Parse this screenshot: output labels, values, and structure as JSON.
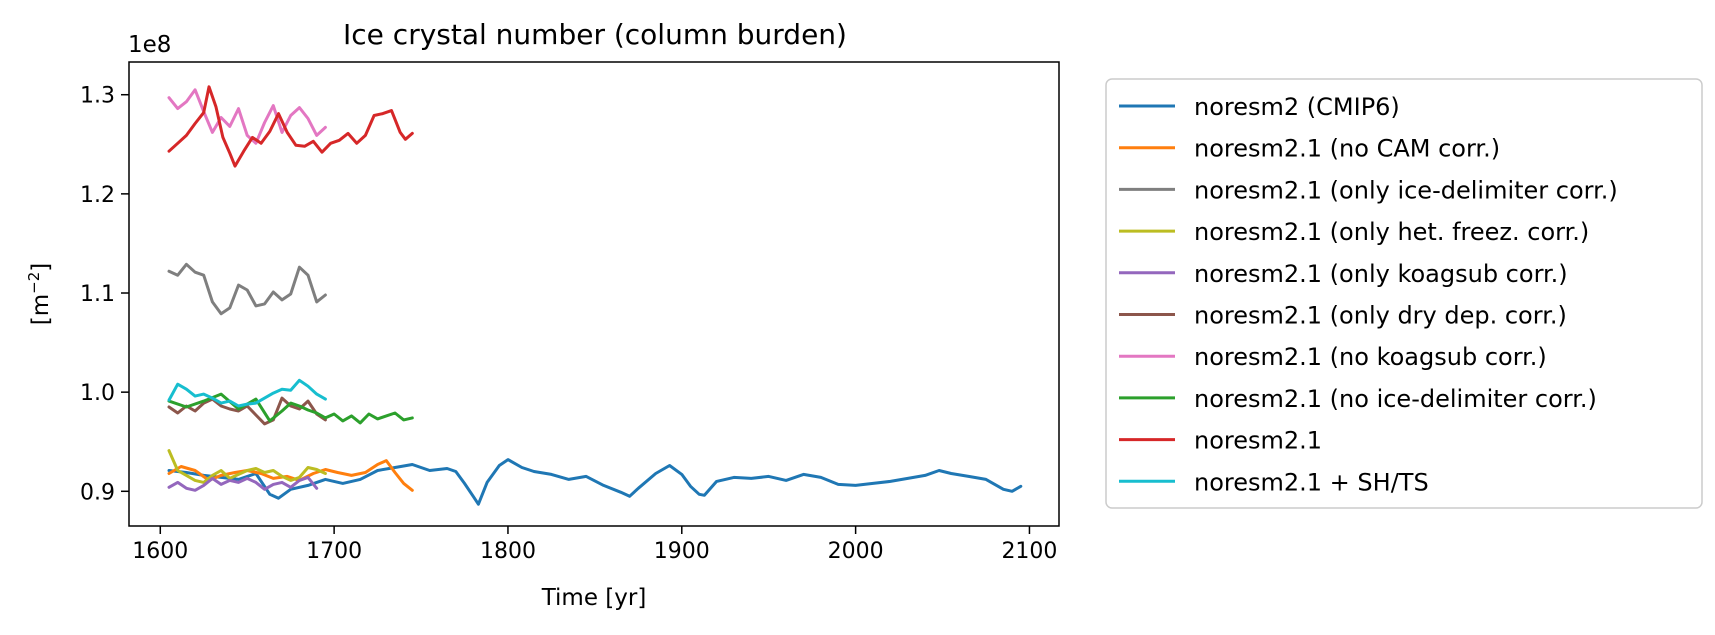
{
  "chart_data": {
    "type": "line",
    "title": "Ice crystal number (column burden)",
    "xlabel": "Time [yr]",
    "ylabel_prefix": "[m",
    "ylabel_exponent": "−2",
    "ylabel_suffix": "]",
    "y_offset_label": "1e8",
    "xlim": [
      1582,
      2117
    ],
    "ylim": [
      0.865,
      1.333
    ],
    "xticks": [
      1600,
      1700,
      1800,
      1900,
      2000,
      2100
    ],
    "yticks": [
      0.9,
      1.0,
      1.1,
      1.2,
      1.3
    ],
    "ytick_labels": [
      "0.9",
      "1.0",
      "1.1",
      "1.2",
      "1.3"
    ],
    "grid": false,
    "legend_position": "outside-right",
    "series": [
      {
        "name": "noresm2 (CMIP6)",
        "color": "#1f77b4",
        "x": [
          1605,
          1615,
          1625,
          1635,
          1645,
          1655,
          1663,
          1668,
          1675,
          1685,
          1695,
          1705,
          1715,
          1725,
          1735,
          1745,
          1755,
          1765,
          1770,
          1775,
          1780,
          1783,
          1788,
          1795,
          1800,
          1808,
          1815,
          1825,
          1835,
          1845,
          1855,
          1865,
          1870,
          1875,
          1885,
          1893,
          1900,
          1905,
          1910,
          1913,
          1920,
          1930,
          1940,
          1950,
          1960,
          1970,
          1980,
          1990,
          2000,
          2010,
          2020,
          2030,
          2040,
          2048,
          2055,
          2065,
          2075,
          2085,
          2090,
          2095
        ],
        "values": [
          0.921,
          0.919,
          0.916,
          0.914,
          0.912,
          0.918,
          0.897,
          0.893,
          0.902,
          0.906,
          0.912,
          0.908,
          0.912,
          0.921,
          0.924,
          0.927,
          0.921,
          0.923,
          0.92,
          0.908,
          0.895,
          0.887,
          0.909,
          0.926,
          0.932,
          0.924,
          0.92,
          0.917,
          0.912,
          0.915,
          0.906,
          0.899,
          0.895,
          0.903,
          0.918,
          0.926,
          0.917,
          0.905,
          0.897,
          0.896,
          0.91,
          0.914,
          0.913,
          0.915,
          0.911,
          0.917,
          0.914,
          0.907,
          0.906,
          0.908,
          0.91,
          0.913,
          0.916,
          0.921,
          0.918,
          0.915,
          0.912,
          0.902,
          0.9,
          0.905
        ]
      },
      {
        "name": "noresm2.1 (no CAM corr.)",
        "color": "#ff7f0e",
        "x": [
          1605,
          1612,
          1620,
          1628,
          1635,
          1643,
          1650,
          1658,
          1665,
          1673,
          1680,
          1688,
          1695,
          1702,
          1710,
          1718,
          1725,
          1730,
          1735,
          1740,
          1745
        ],
        "values": [
          0.918,
          0.925,
          0.921,
          0.911,
          0.916,
          0.919,
          0.921,
          0.918,
          0.913,
          0.915,
          0.911,
          0.918,
          0.922,
          0.919,
          0.916,
          0.919,
          0.927,
          0.931,
          0.919,
          0.908,
          0.901
        ]
      },
      {
        "name": "noresm2.1 (only ice-delimiter corr.)",
        "color": "#7f7f7f",
        "x": [
          1605,
          1610,
          1615,
          1620,
          1625,
          1630,
          1635,
          1640,
          1645,
          1650,
          1655,
          1660,
          1665,
          1670,
          1675,
          1680,
          1685,
          1690,
          1695
        ],
        "values": [
          1.122,
          1.118,
          1.129,
          1.121,
          1.118,
          1.091,
          1.079,
          1.085,
          1.108,
          1.103,
          1.087,
          1.089,
          1.101,
          1.093,
          1.099,
          1.126,
          1.118,
          1.091,
          1.098
        ]
      },
      {
        "name": "noresm2.1 (only het. freez. corr.)",
        "color": "#bcbd22",
        "x": [
          1605,
          1610,
          1615,
          1620,
          1625,
          1630,
          1635,
          1640,
          1645,
          1650,
          1655,
          1660,
          1665,
          1670,
          1675,
          1680,
          1685,
          1690,
          1695
        ],
        "values": [
          0.941,
          0.921,
          0.916,
          0.911,
          0.909,
          0.916,
          0.921,
          0.913,
          0.917,
          0.921,
          0.923,
          0.919,
          0.921,
          0.915,
          0.911,
          0.914,
          0.924,
          0.922,
          0.918
        ]
      },
      {
        "name": "noresm2.1 (only koagsub corr.)",
        "color": "#9467bd",
        "x": [
          1605,
          1610,
          1615,
          1620,
          1625,
          1630,
          1635,
          1640,
          1645,
          1650,
          1655,
          1660,
          1665,
          1670,
          1675,
          1680,
          1685,
          1690
        ],
        "values": [
          0.904,
          0.909,
          0.903,
          0.901,
          0.906,
          0.913,
          0.907,
          0.911,
          0.909,
          0.913,
          0.909,
          0.902,
          0.907,
          0.909,
          0.904,
          0.911,
          0.914,
          0.903
        ]
      },
      {
        "name": "noresm2.1 (only dry dep. corr.)",
        "color": "#8c564b",
        "x": [
          1605,
          1610,
          1615,
          1620,
          1625,
          1630,
          1635,
          1640,
          1645,
          1650,
          1655,
          1660,
          1665,
          1670,
          1675,
          1680,
          1685,
          1690,
          1695
        ],
        "values": [
          0.985,
          0.979,
          0.986,
          0.981,
          0.989,
          0.993,
          0.986,
          0.983,
          0.981,
          0.986,
          0.977,
          0.968,
          0.972,
          0.994,
          0.986,
          0.983,
          0.991,
          0.978,
          0.972
        ]
      },
      {
        "name": "noresm2.1 (no koagsub corr.)",
        "color": "#e377c2",
        "x": [
          1605,
          1610,
          1615,
          1620,
          1625,
          1630,
          1635,
          1640,
          1645,
          1650,
          1655,
          1660,
          1665,
          1670,
          1675,
          1680,
          1685,
          1690,
          1695
        ],
        "values": [
          1.297,
          1.286,
          1.293,
          1.305,
          1.283,
          1.262,
          1.277,
          1.268,
          1.286,
          1.259,
          1.251,
          1.272,
          1.289,
          1.262,
          1.279,
          1.287,
          1.276,
          1.259,
          1.267
        ]
      },
      {
        "name": "noresm2.1 (no ice-delimiter corr.)",
        "color": "#2ca02c",
        "x": [
          1605,
          1615,
          1625,
          1635,
          1645,
          1655,
          1663,
          1670,
          1675,
          1680,
          1685,
          1690,
          1695,
          1700,
          1705,
          1710,
          1715,
          1720,
          1725,
          1730,
          1735,
          1740,
          1745
        ],
        "values": [
          0.991,
          0.985,
          0.991,
          0.998,
          0.983,
          0.993,
          0.971,
          0.981,
          0.989,
          0.986,
          0.982,
          0.979,
          0.974,
          0.978,
          0.971,
          0.976,
          0.969,
          0.978,
          0.973,
          0.976,
          0.979,
          0.972,
          0.974
        ]
      },
      {
        "name": "noresm2.1",
        "color": "#d62728",
        "x": [
          1605,
          1610,
          1615,
          1620,
          1625,
          1628,
          1632,
          1636,
          1640,
          1643,
          1648,
          1653,
          1658,
          1663,
          1668,
          1673,
          1678,
          1683,
          1688,
          1693,
          1698,
          1703,
          1708,
          1713,
          1718,
          1723,
          1728,
          1733,
          1738,
          1741,
          1745
        ],
        "values": [
          1.243,
          1.251,
          1.259,
          1.271,
          1.282,
          1.308,
          1.288,
          1.257,
          1.241,
          1.228,
          1.243,
          1.257,
          1.251,
          1.263,
          1.281,
          1.262,
          1.249,
          1.248,
          1.253,
          1.242,
          1.251,
          1.254,
          1.261,
          1.251,
          1.259,
          1.279,
          1.281,
          1.284,
          1.262,
          1.255,
          1.261
        ]
      },
      {
        "name": "noresm2.1 + SH/TS",
        "color": "#17becf",
        "x": [
          1605,
          1610,
          1615,
          1620,
          1625,
          1630,
          1635,
          1640,
          1645,
          1650,
          1655,
          1660,
          1665,
          1670,
          1675,
          1680,
          1685,
          1690,
          1695
        ],
        "values": [
          0.992,
          1.008,
          1.003,
          0.996,
          0.998,
          0.994,
          0.989,
          0.991,
          0.986,
          0.988,
          0.989,
          0.994,
          0.999,
          1.003,
          1.002,
          1.012,
          1.006,
          0.998,
          0.993
        ]
      }
    ]
  }
}
